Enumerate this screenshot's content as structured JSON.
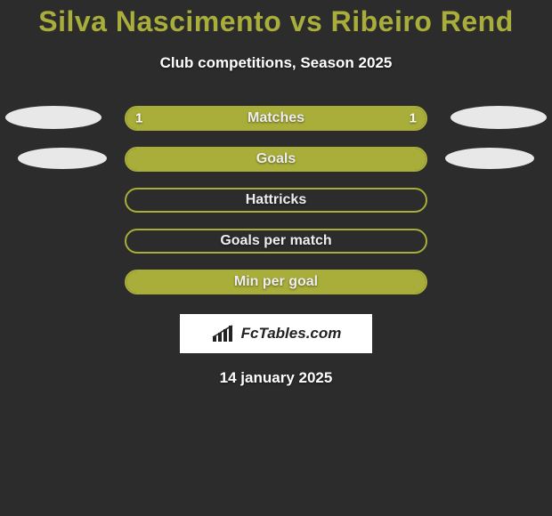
{
  "title_color": "#a9ad3a",
  "background_color": "#2c2c2c",
  "bar_border_color": "#a9ad3a",
  "bar_fill_color": "#a9ad3a",
  "marker_color": "#e8e8e8",
  "title": "Silva Nascimento vs Ribeiro Rend",
  "subtitle": "Club competitions, Season 2025",
  "date": "14 january 2025",
  "logo_text": "FcTables.com",
  "rows": [
    {
      "label": "Matches",
      "left_val": "1",
      "right_val": "1",
      "fill_left_pct": 0,
      "fill_right_pct": 0,
      "fill_full": true,
      "show_left_marker": true,
      "show_right_marker": true,
      "marker_row": "outer"
    },
    {
      "label": "Goals",
      "left_val": "",
      "right_val": "",
      "fill_full": true,
      "show_left_marker": true,
      "show_right_marker": true,
      "marker_row": "inner"
    },
    {
      "label": "Hattricks",
      "left_val": "",
      "right_val": "",
      "fill_full": false,
      "show_left_marker": false,
      "show_right_marker": false
    },
    {
      "label": "Goals per match",
      "left_val": "",
      "right_val": "",
      "fill_full": false,
      "show_left_marker": false,
      "show_right_marker": false
    },
    {
      "label": "Min per goal",
      "left_val": "",
      "right_val": "",
      "fill_full": true,
      "show_left_marker": false,
      "show_right_marker": false
    }
  ]
}
